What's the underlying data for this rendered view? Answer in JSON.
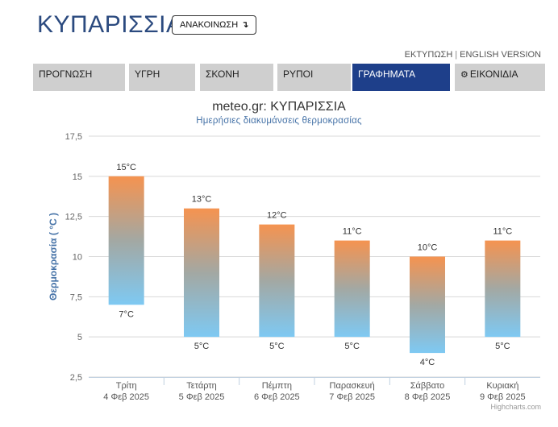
{
  "header": {
    "title": "ΚΥΠΑΡΙΣΣΙΑ",
    "announce_label": "ΑΝΑΚΟΙΝΩΣΗ",
    "announce_icon": "arrow-down-icon"
  },
  "top_links": {
    "print": "ΕΚΤΥΠΩΣΗ",
    "separator": "|",
    "english": "ENGLISH VERSION"
  },
  "nav": {
    "tabs": [
      {
        "label": "ΠΡΟΓΝΩΣΗ"
      },
      {
        "label": "ΥΓΡΗ"
      },
      {
        "label": "ΣΚΟΝΗ"
      },
      {
        "label": "ΡΥΠΟΙ"
      },
      {
        "label": "ΓΡΑΦΗΜΑΤΑ",
        "active": true
      },
      {
        "label": "ΕΙΚΟΝΙΔΙΑ",
        "icon": "gear-icon"
      }
    ]
  },
  "colors": {
    "bar_top": "#f59350",
    "bar_mid": "#a3a8a3",
    "bar_bottom": "#7ec9f3",
    "accent": "#1e3f8a",
    "axis_title": "#4572a7"
  },
  "chart_data": {
    "type": "bar",
    "subtype": "columnrange",
    "title": "meteo.gr: ΚΥΠΑΡΙΣΣΙΑ",
    "subtitle": "Ημερήσιες διακυμάνσεις θερμοκρασίας",
    "ylabel": "Θερμοκρασία ( °C )",
    "xlabel": "",
    "ylim": [
      2.5,
      17.5
    ],
    "yticks": [
      "2,5",
      "5",
      "7,5",
      "10",
      "12,5",
      "15",
      "17,5"
    ],
    "grid": true,
    "legend": "none",
    "categories": [
      {
        "day": "Τρίτη",
        "date": "4 Φεβ 2025"
      },
      {
        "day": "Τετάρτη",
        "date": "5 Φεβ 2025"
      },
      {
        "day": "Πέμπτη",
        "date": "6 Φεβ 2025"
      },
      {
        "day": "Παρασκευή",
        "date": "7 Φεβ 2025"
      },
      {
        "day": "Σάββατο",
        "date": "8 Φεβ 2025"
      },
      {
        "day": "Κυριακή",
        "date": "9 Φεβ 2025"
      }
    ],
    "low": [
      7,
      5,
      5,
      5,
      4,
      5
    ],
    "high": [
      15,
      13,
      12,
      11,
      10,
      11
    ],
    "low_labels": [
      "7°C",
      "5°C",
      "5°C",
      "5°C",
      "4°C",
      "5°C"
    ],
    "high_labels": [
      "15°C",
      "13°C",
      "12°C",
      "11°C",
      "10°C",
      "11°C"
    ],
    "credit": "Highcharts.com"
  }
}
